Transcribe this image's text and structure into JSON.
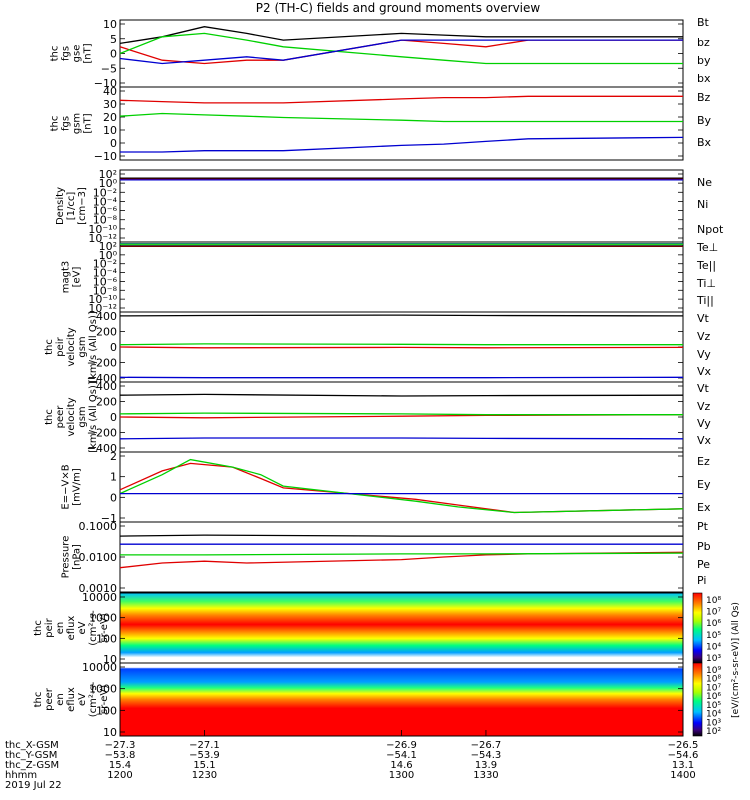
{
  "title": "P2 (TH-C) fields and ground moments overview",
  "colors": {
    "black": "#000000",
    "red": "#e00000",
    "green": "#00d000",
    "blue": "#0000d0"
  },
  "chart_data": [
    {
      "type": "line",
      "id": "fgs_gse",
      "ylabel": [
        "thc",
        "fgs",
        "gse",
        "[nT]"
      ],
      "yticks": [
        "10",
        "5",
        "0",
        "−5",
        "−10"
      ],
      "ylim": [
        -10,
        10
      ],
      "legend": [
        "Bt",
        "bz",
        "by",
        "bx"
      ],
      "series": [
        {
          "name": "Bt",
          "color": "black",
          "x": [
            1200,
            1215,
            1230,
            1245,
            1258,
            1300,
            1315,
            1330,
            1345,
            1400
          ],
          "y": [
            3,
            5,
            8,
            6,
            4,
            6,
            5.5,
            5,
            5,
            5
          ]
        },
        {
          "name": "bz",
          "color": "red",
          "x": [
            1200,
            1215,
            1230,
            1245,
            1258,
            1300,
            1315,
            1330,
            1345,
            1400
          ],
          "y": [
            2,
            -2,
            -3,
            -2,
            -2,
            4,
            3,
            2,
            4,
            4
          ]
        },
        {
          "name": "by",
          "color": "green",
          "x": [
            1200,
            1215,
            1230,
            1245,
            1258,
            1300,
            1315,
            1330,
            1345,
            1400
          ],
          "y": [
            0,
            5,
            6,
            4,
            2,
            -1,
            -2,
            -3,
            -3,
            -3
          ]
        },
        {
          "name": "bx",
          "color": "blue",
          "x": [
            1200,
            1215,
            1230,
            1245,
            1258,
            1300,
            1315,
            1330,
            1345,
            1400
          ],
          "y": [
            -1.5,
            -3,
            -2,
            -1,
            -2,
            4,
            4,
            4,
            4,
            4
          ]
        }
      ]
    },
    {
      "type": "line",
      "id": "fgs_gsm",
      "ylabel": [
        "thc",
        "fgs",
        "gsm",
        "[nT]"
      ],
      "yticks": [
        "40",
        "30",
        "20",
        "10",
        "0",
        "−10"
      ],
      "ylim": [
        -15,
        40
      ],
      "legend": [
        "Bz",
        "By",
        "Bx"
      ],
      "series": [
        {
          "name": "Bz",
          "color": "red",
          "x": [
            1200,
            1215,
            1230,
            1245,
            1258,
            1300,
            1315,
            1330,
            1345,
            1400
          ],
          "y": [
            30,
            29,
            28,
            28,
            28,
            31,
            32,
            32,
            33,
            33
          ]
        },
        {
          "name": "By",
          "color": "green",
          "x": [
            1200,
            1215,
            1230,
            1245,
            1258,
            1300,
            1315,
            1330,
            1345,
            1400
          ],
          "y": [
            18,
            20,
            19,
            18,
            17,
            15,
            14,
            14,
            14,
            14
          ]
        },
        {
          "name": "Bx",
          "color": "blue",
          "x": [
            1200,
            1215,
            1230,
            1245,
            1258,
            1300,
            1315,
            1330,
            1345,
            1400
          ],
          "y": [
            -9,
            -9,
            -8,
            -8,
            -8,
            -4,
            -3,
            -1,
            1,
            2
          ]
        }
      ]
    },
    {
      "type": "line",
      "id": "density",
      "ylabel": [
        "Density",
        "[1/cc]",
        "[cm−3]"
      ],
      "yticks": [
        "10²",
        "10⁰",
        "10⁻²",
        "10⁻⁴",
        "10⁻⁶",
        "10⁻⁸",
        "10⁻¹⁰",
        "10⁻¹²"
      ],
      "ylim": [
        -13,
        3
      ],
      "legend": [
        "Ne",
        "Ni",
        "Npot"
      ],
      "series": [
        {
          "name": "Ne",
          "color": "red",
          "x": [
            1200,
            1400
          ],
          "y": [
            1,
            1
          ]
        },
        {
          "name": "Ni",
          "color": "black",
          "x": [
            1200,
            1400
          ],
          "y": [
            1.2,
            1.2
          ]
        },
        {
          "name": "Npot",
          "color": "blue",
          "x": [
            1200,
            1400
          ],
          "y": [
            0.8,
            0.8
          ]
        }
      ]
    },
    {
      "type": "line",
      "id": "temperature",
      "ylabel": [
        "magt3",
        "[eV]"
      ],
      "yticks": [
        "10²",
        "10⁰",
        "10⁻²",
        "10⁻⁴",
        "10⁻⁶",
        "10⁻⁸",
        "10⁻¹⁰",
        "10⁻¹²"
      ],
      "ylim": [
        -13,
        3
      ],
      "legend": [
        "Te⊥",
        "Te||",
        "Ti⊥",
        "Ti||"
      ],
      "series": [
        {
          "name": "Te⊥",
          "color": "red",
          "x": [
            1200,
            1400
          ],
          "y": [
            2,
            2
          ]
        },
        {
          "name": "Te||",
          "color": "black",
          "x": [
            1200,
            1400
          ],
          "y": [
            2.1,
            2.1
          ]
        },
        {
          "name": "Ti⊥",
          "color": "blue",
          "x": [
            1200,
            1400
          ],
          "y": [
            2.6,
            2.6
          ]
        },
        {
          "name": "Ti||",
          "color": "green",
          "x": [
            1200,
            1400
          ],
          "y": [
            2.5,
            2.5
          ]
        }
      ]
    },
    {
      "type": "line",
      "id": "peir_velocity",
      "ylabel": [
        "thc",
        "peir",
        "velocity",
        "gsm",
        "[km/s (All Qs)]"
      ],
      "yticks": [
        "400",
        "200",
        "0",
        "−200",
        "−400"
      ],
      "ylim": [
        -450,
        450
      ],
      "legend": [
        "Vt",
        "Vz",
        "Vy",
        "Vx"
      ],
      "series": [
        {
          "name": "Vt",
          "color": "black",
          "x": [
            1200,
            1230,
            1300,
            1330,
            1400
          ],
          "y": [
            400,
            405,
            410,
            405,
            400
          ]
        },
        {
          "name": "Vz",
          "color": "red",
          "x": [
            1200,
            1230,
            1300,
            1330,
            1400
          ],
          "y": [
            0,
            -10,
            -5,
            -10,
            -5
          ]
        },
        {
          "name": "Vy",
          "color": "green",
          "x": [
            1200,
            1230,
            1300,
            1330,
            1400
          ],
          "y": [
            30,
            40,
            35,
            30,
            30
          ]
        },
        {
          "name": "Vx",
          "color": "blue",
          "x": [
            1200,
            1230,
            1300,
            1330,
            1400
          ],
          "y": [
            -390,
            -395,
            -395,
            -395,
            -390
          ]
        }
      ]
    },
    {
      "type": "line",
      "id": "peer_velocity",
      "ylabel": [
        "thc",
        "peer",
        "velocity",
        "gsm",
        "[km/s (All Qs)]"
      ],
      "yticks": [
        "400",
        "200",
        "0",
        "−200",
        "−400"
      ],
      "ylim": [
        -450,
        450
      ],
      "legend": [
        "Vt",
        "Vz",
        "Vy",
        "Vx"
      ],
      "series": [
        {
          "name": "Vt",
          "color": "black",
          "x": [
            1200,
            1230,
            1300,
            1330,
            1400
          ],
          "y": [
            280,
            290,
            270,
            275,
            280
          ]
        },
        {
          "name": "Vz",
          "color": "red",
          "x": [
            1200,
            1230,
            1300,
            1330,
            1400
          ],
          "y": [
            0,
            -10,
            10,
            20,
            30
          ]
        },
        {
          "name": "Vy",
          "color": "green",
          "x": [
            1200,
            1230,
            1300,
            1330,
            1400
          ],
          "y": [
            40,
            50,
            40,
            30,
            30
          ]
        },
        {
          "name": "Vx",
          "color": "blue",
          "x": [
            1200,
            1230,
            1300,
            1330,
            1400
          ],
          "y": [
            -280,
            -270,
            -270,
            -275,
            -280
          ]
        }
      ]
    },
    {
      "type": "line",
      "id": "efield",
      "ylabel": [
        "E=−V×B",
        "[mV/m]"
      ],
      "yticks": [
        "2",
        "1",
        "0",
        "−1"
      ],
      "ylim": [
        -1.5,
        2.2
      ],
      "legend": [
        "Ez",
        "Ey",
        "Ex"
      ],
      "series": [
        {
          "name": "Ez",
          "color": "red",
          "x": [
            1200,
            1215,
            1225,
            1240,
            1250,
            1258,
            1305,
            1320,
            1340,
            1400
          ],
          "y": [
            0.2,
            1.2,
            1.6,
            1.4,
            0.8,
            0.3,
            -0.3,
            -0.6,
            -1.0,
            -0.8
          ]
        },
        {
          "name": "Ey",
          "color": "green",
          "x": [
            1200,
            1215,
            1225,
            1240,
            1250,
            1258,
            1305,
            1320,
            1340,
            1400
          ],
          "y": [
            0,
            1.0,
            1.8,
            1.4,
            1.0,
            0.4,
            -0.4,
            -0.7,
            -1.0,
            -0.8
          ]
        },
        {
          "name": "Ex",
          "color": "blue",
          "x": [
            1200,
            1400
          ],
          "y": [
            0,
            0
          ]
        }
      ]
    },
    {
      "type": "line",
      "id": "pressure",
      "ylabel": [
        "Pressure",
        "[nPa]"
      ],
      "yticks": [
        "0.1000",
        "0.0100",
        "0.0010"
      ],
      "ylim": [
        0.0005,
        0.2
      ],
      "yscale": "log",
      "legend": [
        "Pt",
        "Pb",
        "Pe",
        "Pi"
      ],
      "series": [
        {
          "name": "Pt",
          "color": "black",
          "x": [
            1200,
            1230,
            1300,
            1330,
            1400
          ],
          "y": [
            0.06,
            0.065,
            0.06,
            0.06,
            0.06
          ]
        },
        {
          "name": "Pb",
          "color": "red",
          "x": [
            1200,
            1215,
            1230,
            1245,
            1300,
            1315,
            1330,
            1345,
            1400
          ],
          "y": [
            0.004,
            0.006,
            0.007,
            0.006,
            0.008,
            0.01,
            0.012,
            0.013,
            0.015
          ]
        },
        {
          "name": "Pe",
          "color": "green",
          "x": [
            1200,
            1230,
            1300,
            1330,
            1400
          ],
          "y": [
            0.012,
            0.012,
            0.013,
            0.013,
            0.014
          ]
        },
        {
          "name": "Pi",
          "color": "blue",
          "x": [
            1200,
            1230,
            1300,
            1330,
            1400
          ],
          "y": [
            0.03,
            0.03,
            0.03,
            0.03,
            0.03
          ]
        }
      ]
    },
    {
      "type": "heatmap",
      "id": "peir_eflux",
      "ylabel": [
        "thc",
        "peir",
        "en",
        "eflux",
        "eV",
        "(cm²-s-",
        "sr-eV)"
      ],
      "yticks": [
        "10000",
        "1000",
        "100",
        "10"
      ],
      "ylim": [
        5,
        20000
      ],
      "yscale": "log",
      "colorbar": {
        "ticks": [
          "10⁸",
          "10⁷",
          "10⁶",
          "10⁵",
          "10⁴",
          "10³"
        ]
      }
    },
    {
      "type": "heatmap",
      "id": "peer_eflux",
      "ylabel": [
        "thc",
        "peer",
        "en",
        "eflux",
        "eV",
        "(cm²-s-",
        "sr-eV)"
      ],
      "yticks": [
        "10000",
        "1000",
        "100",
        "10"
      ],
      "ylim": [
        5,
        20000
      ],
      "yscale": "log",
      "colorbar": {
        "ticks": [
          "10⁹",
          "10⁸",
          "10⁷",
          "10⁶",
          "10⁵",
          "10⁴",
          "10³",
          "10²"
        ]
      }
    }
  ],
  "colorbar_label": "[eV/(cm²-s-sr-eV)] (All Qs)",
  "xaxis": {
    "row_labels": [
      "thc_X-GSM",
      "thc_Y-GSM",
      "thc_Z-GSM",
      "hhmm",
      "2019 Jul 22"
    ],
    "columns": [
      {
        "x": 1200,
        "vals": [
          "−27.3",
          "−53.8",
          "15.4",
          "1200"
        ]
      },
      {
        "x": 1230,
        "vals": [
          "−27.1",
          "−53.9",
          "15.1",
          "1230"
        ]
      },
      {
        "x": 1300,
        "vals": [
          "−26.9",
          "−54.1",
          "14.6",
          "1300"
        ]
      },
      {
        "x": 1330,
        "vals": [
          "−26.7",
          "−54.3",
          "13.9",
          "1330"
        ]
      },
      {
        "x": 1400,
        "vals": [
          "−26.5",
          "−54.6",
          "13.1",
          "1400"
        ]
      }
    ],
    "xlim": [
      1200,
      1400
    ]
  }
}
